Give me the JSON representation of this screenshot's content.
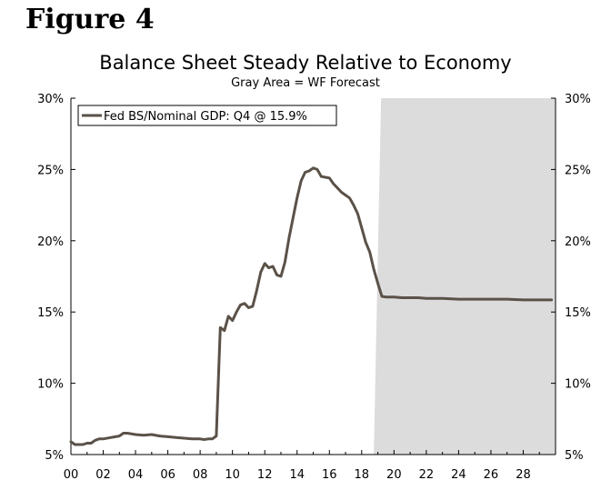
{
  "figure_label": "Figure 4",
  "chart_data": {
    "type": "line",
    "title": "Balance Sheet Steady Relative to Economy",
    "subtitle": "Gray Area = WF Forecast",
    "xlabel": "",
    "ylabel": "",
    "x_tick_labels": [
      "00",
      "02",
      "04",
      "06",
      "08",
      "10",
      "12",
      "14",
      "16",
      "18",
      "20",
      "22",
      "24",
      "26",
      "28"
    ],
    "x_tick_values": [
      2000,
      2002,
      2004,
      2006,
      2008,
      2010,
      2012,
      2014,
      2016,
      2018,
      2020,
      2022,
      2024,
      2026,
      2028
    ],
    "xlim": [
      2000,
      2030
    ],
    "y_tick_labels": [
      "5%",
      "10%",
      "15%",
      "20%",
      "25%",
      "30%"
    ],
    "y_tick_values": [
      5,
      10,
      15,
      20,
      25,
      30
    ],
    "ylim": [
      5,
      30
    ],
    "forecast_region": {
      "start": 2018.75,
      "end": 2030,
      "color": "#dcdcdc"
    },
    "line_color": "#5a5148",
    "series": [
      {
        "name": "Fed BS/Nominal GDP: Q4 @ 15.9%",
        "x": [
          2000.0,
          2000.25,
          2000.5,
          2000.75,
          2001.0,
          2001.25,
          2001.5,
          2001.75,
          2002.0,
          2002.5,
          2003.0,
          2003.25,
          2003.5,
          2004.0,
          2004.5,
          2005.0,
          2005.5,
          2006.0,
          2006.5,
          2007.0,
          2007.5,
          2008.0,
          2008.25,
          2008.5,
          2008.75,
          2009.0,
          2009.25,
          2009.5,
          2009.75,
          2010.0,
          2010.25,
          2010.5,
          2010.75,
          2011.0,
          2011.25,
          2011.5,
          2011.75,
          2012.0,
          2012.25,
          2012.5,
          2012.75,
          2013.0,
          2013.25,
          2013.5,
          2013.75,
          2014.0,
          2014.25,
          2014.5,
          2014.75,
          2015.0,
          2015.25,
          2015.5,
          2015.75,
          2016.0,
          2016.25,
          2016.5,
          2016.75,
          2017.0,
          2017.25,
          2017.5,
          2017.75,
          2018.0,
          2018.25,
          2018.5,
          2018.75,
          2019.0,
          2019.25,
          2019.5,
          2019.75,
          2020.0,
          2020.5,
          2021.0,
          2021.5,
          2022.0,
          2022.5,
          2023.0,
          2024.0,
          2025.0,
          2026.0,
          2027.0,
          2028.0,
          2029.0,
          2029.75
        ],
        "values": [
          5.9,
          5.7,
          5.7,
          5.7,
          5.8,
          5.8,
          6.0,
          6.1,
          6.1,
          6.2,
          6.3,
          6.5,
          6.5,
          6.4,
          6.35,
          6.4,
          6.3,
          6.25,
          6.2,
          6.15,
          6.1,
          6.1,
          6.05,
          6.1,
          6.1,
          6.3,
          13.9,
          13.7,
          14.7,
          14.4,
          15.0,
          15.5,
          15.6,
          15.3,
          15.4,
          16.5,
          17.8,
          18.4,
          18.1,
          18.2,
          17.6,
          17.5,
          18.5,
          20.2,
          21.6,
          23.0,
          24.2,
          24.8,
          24.9,
          25.1,
          25.0,
          24.5,
          24.45,
          24.4,
          24.0,
          23.7,
          23.4,
          23.2,
          23.0,
          22.5,
          21.9,
          20.9,
          19.9,
          19.2,
          18.0,
          17.0,
          16.1,
          16.05,
          16.05,
          16.05,
          16.0,
          16.0,
          16.0,
          15.95,
          15.95,
          15.95,
          15.9,
          15.9,
          15.9,
          15.9,
          15.85,
          15.85,
          15.85
        ]
      }
    ],
    "legend": {
      "label": "Fed BS/Nominal GDP: Q4 @ 15.9%",
      "position": "top-left"
    }
  }
}
